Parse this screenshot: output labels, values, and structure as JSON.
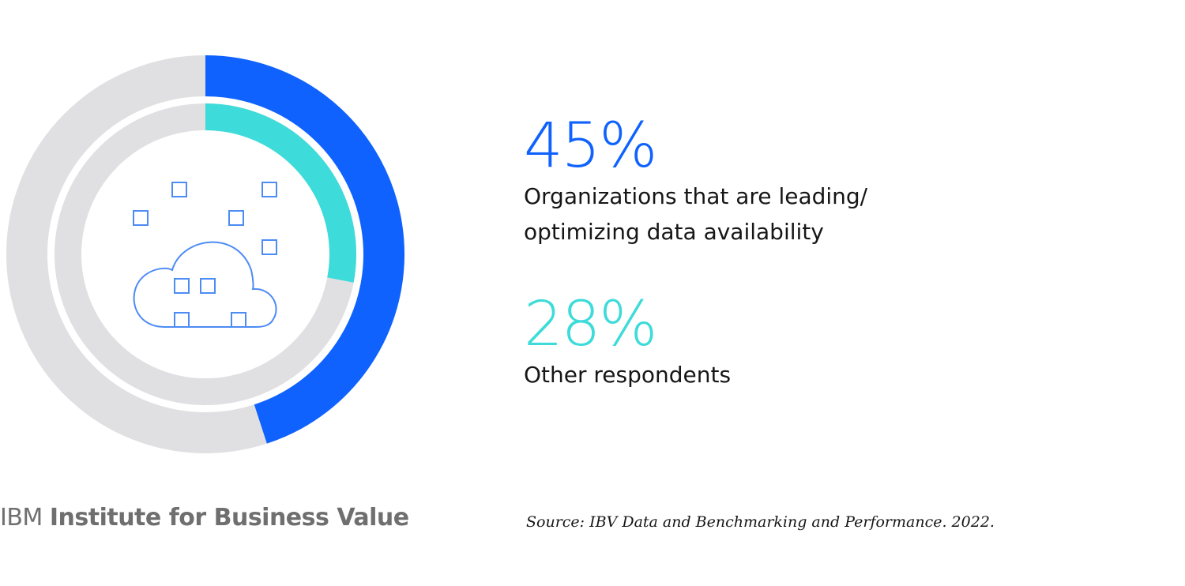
{
  "chart_data": {
    "type": "donut",
    "series": [
      {
        "value": 45,
        "value_label": "45%",
        "label_lines": [
          "Organizations that are leading/",
          "optimizing data availability"
        ],
        "color": "#0f62fe"
      },
      {
        "value": 28,
        "value_label": "28%",
        "label_lines": [
          "Other respondents"
        ],
        "color": "#3ddbd9"
      }
    ],
    "track_color": "#e0e0e3",
    "center_icon": "cloud-data-icon",
    "icon_color": "#4d8bf5"
  },
  "footer": {
    "brand_prefix": "IBM",
    "brand_name": "Institute for Business Value",
    "source": "Source: IBV Data and Benchmarking and Performance. 2022."
  }
}
